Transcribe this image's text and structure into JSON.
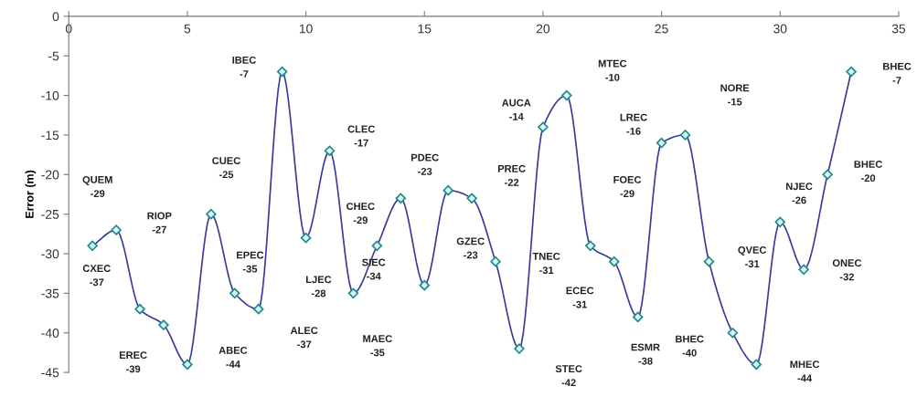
{
  "chart_data": {
    "type": "line",
    "ylabel": "Error (m)",
    "x": [
      1,
      2,
      3,
      4,
      5,
      6,
      7,
      8,
      9,
      10,
      11,
      12,
      13,
      14,
      15,
      16,
      17,
      18,
      19,
      20,
      21,
      22,
      23,
      24,
      25,
      26,
      27,
      28,
      29,
      30,
      31,
      32,
      33
    ],
    "series": [
      {
        "color": "#3a3a9c",
        "values": [
          -29,
          -27,
          -37,
          -39,
          -44,
          -25,
          -35,
          -37,
          -7,
          -28,
          -17,
          -35,
          -29,
          -23,
          -34,
          -22,
          -23,
          -31,
          -42,
          -14,
          -10,
          -29,
          -31,
          -38,
          -16,
          -15,
          -31,
          -40,
          -44,
          -26,
          -32,
          -20,
          -7
        ]
      }
    ],
    "annotations": [
      "QUEM\n-29",
      "RIOP\n-27",
      "CXEC\n-37",
      "EREC\n-39",
      "ABEC\n-44",
      "CUEC\n-25",
      "EPEC\n-35",
      "ALEC\n-37",
      "IBEC\n-7",
      "LJEC\n-28",
      "CLEC\n-17",
      "MAEC\n-35",
      "CHEC\n-29",
      "PDEC\n-23",
      "SIEC\n-34",
      "PREC\n-22",
      "GZEC\n-23",
      "TNEC\n-31",
      "STEC\n-42",
      "AUCA\n-14",
      "MTEC\n-10",
      "FOEC\n-29",
      "ECEC\n-31",
      "ESMR\n-38",
      "LREC\n-16",
      "NORE\n-15",
      "QVEC\n-31",
      "BHEC\n-40",
      "MHEC\n-44",
      "NJEC\n-26",
      "ONEC\n-32",
      "BHEC\n-20",
      "BHEC\n-7"
    ],
    "xlim": [
      0,
      35
    ],
    "xticks": [
      0,
      5,
      10,
      15,
      20,
      25,
      30,
      35
    ],
    "ylim": [
      -45,
      0
    ],
    "yticks": [
      -45,
      -40,
      -35,
      -30,
      -25,
      -20,
      -15,
      -10,
      -5,
      0
    ],
    "marker": "diamond",
    "line_style": "solid",
    "grid": false
  }
}
